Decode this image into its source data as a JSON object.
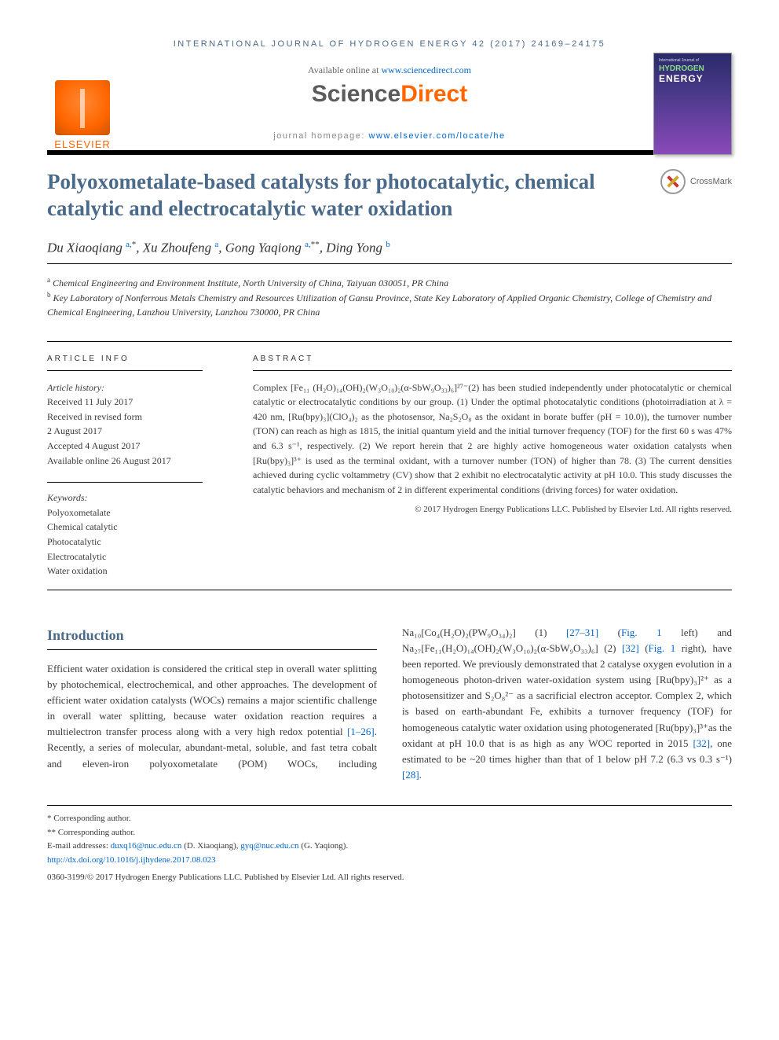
{
  "running_head": "INTERNATIONAL JOURNAL OF HYDROGEN ENERGY 42 (2017) 24169–24175",
  "sd": {
    "available": "Available online at ",
    "available_link_text": "www.sciencedirect.com",
    "logo_prefix": "Science",
    "logo_suffix": "Direct",
    "homepage_label": "journal homepage: ",
    "homepage_link_text": "www.elsevier.com/locate/he"
  },
  "elsevier_name": "ELSEVIER",
  "journal_cover": {
    "top": "International Journal of",
    "hy": "HYDROGEN",
    "en": "ENERGY"
  },
  "title": "Polyoxometalate-based catalysts for photocatalytic, chemical catalytic and electrocatalytic water oxidation",
  "crossmark_label": "CrossMark",
  "authors_html": "Du Xiaoqiang <sup class='aff'>a,</sup><sup>*</sup>, Xu Zhoufeng <sup class='aff'>a</sup>, Gong Yaqiong <sup class='aff'>a,</sup><sup>**</sup>, Ding Yong <sup class='aff'>b</sup>",
  "affiliations": {
    "a": "Chemical Engineering and Environment Institute, North University of China, Taiyuan 030051, PR China",
    "b": "Key Laboratory of Nonferrous Metals Chemistry and Resources Utilization of Gansu Province, State Key Laboratory of Applied Organic Chemistry, College of Chemistry and Chemical Engineering, Lanzhou University, Lanzhou 730000, PR China"
  },
  "info": {
    "head": "ARTICLE INFO",
    "history_label": "Article history:",
    "history": [
      "Received 11 July 2017",
      "Received in revised form",
      "2 August 2017",
      "Accepted 4 August 2017",
      "Available online 26 August 2017"
    ],
    "keywords_label": "Keywords:",
    "keywords": [
      "Polyoxometalate",
      "Chemical catalytic",
      "Photocatalytic",
      "Electrocatalytic",
      "Water oxidation"
    ]
  },
  "abstract": {
    "head": "ABSTRACT",
    "text": "Complex [Fe₁₁ (H₂O)₁₄(OH)₂(W₃O₁₀)₂(α-SbW₉O₃₃)₆]²⁷⁻(2) has been studied independently under photocatalytic or chemical catalytic or electrocatalytic conditions by our group. (1) Under the optimal photocatalytic conditions (photoirradiation at λ = 420 nm, [Ru(bpy)₃](ClO₄)₂ as the photosensor, Na₂S₂O₈ as the oxidant in borate buffer (pH = 10.0)), the turnover number (TON) can reach as high as 1815, the initial quantum yield and the initial turnover frequency (TOF) for the first 60 s was 47% and 6.3 s⁻¹, respectively. (2) We report herein that 2 are highly active homogeneous water oxidation catalysts when [Ru(bpy)₃]³⁺ is used as the terminal oxidant, with a turnover number (TON) of higher than 78. (3) The current densities achieved during cyclic voltammetry (CV) show that 2 exhibit no electrocatalytic activity at pH 10.0. This study discusses the catalytic behaviors and mechanism of 2 in different experimental conditions (driving forces) for water oxidation.",
    "copyright": "© 2017 Hydrogen Energy Publications LLC. Published by Elsevier Ltd. All rights reserved."
  },
  "intro": {
    "head": "Introduction",
    "p1_pre": "Efficient water oxidation is considered the critical step in overall water splitting by photochemical, electrochemical, and other approaches. The development of efficient water oxidation catalysts (WOCs) remains a major scientific challenge in overall water splitting, because water oxidation reaction requires a multielectron transfer process along with a very high redox potential ",
    "cite1": "[1–26]",
    "p1_post": ". Recently, a series of molecular, abundant-metal, soluble, and fast tetra cobalt and eleven-iron polyoxometalate (POM) WOCs, including Na₁₀",
    "p2_a": "[Co₄(H₂O)₂(PW₉O₃₄)₂] (1) ",
    "cite2": "[27–31]",
    "p2_b": " (",
    "fig1a": "Fig. 1",
    "p2_c": " left) and Na₂₇[Fe₁₁(H₂O)₁₄(OH)₂(W₃O₁₀)₂(α-SbW₉O₃₃)₆] (2) ",
    "cite3": "[32]",
    "p2_d": " (",
    "fig1b": "Fig. 1",
    "p2_e": " right), have been reported. We previously demonstrated that 2 catalyse oxygen evolution in a homogeneous photon-driven water-oxidation system using [Ru(bpy)₃]²⁺ as a photosensitizer and S₂O₈²⁻ as a sacrificial electron acceptor. Complex 2, which is based on earth-abundant Fe, exhibits a turnover frequency (TOF) for homogeneous catalytic water oxidation using photogenerated [Ru(bpy)₃]³⁺as the oxidant at pH 10.0 that is as high as any WOC reported in 2015 ",
    "cite4": "[32]",
    "p2_f": ", one estimated to be ~20 times higher than that of 1 below pH 7.2 (6.3 vs 0.3 s⁻¹) ",
    "cite5": "[28]",
    "p2_g": "."
  },
  "footnotes": {
    "c1": "* Corresponding author.",
    "c2": "** Corresponding author.",
    "email_label": "E-mail addresses: ",
    "email1": "duxq16@nuc.edu.cn",
    "email1_name": " (D. Xiaoqiang), ",
    "email2": "gyq@nuc.edu.cn",
    "email2_name": " (G. Yaqiong).",
    "doi": "http://dx.doi.org/10.1016/j.ijhydene.2017.08.023",
    "issn_line": "0360-3199/© 2017 Hydrogen Energy Publications LLC. Published by Elsevier Ltd. All rights reserved."
  },
  "colors": {
    "accent": "#4a6a8a",
    "link": "#0066cc",
    "orange": "#ff6600",
    "text": "#3b3b3b"
  }
}
